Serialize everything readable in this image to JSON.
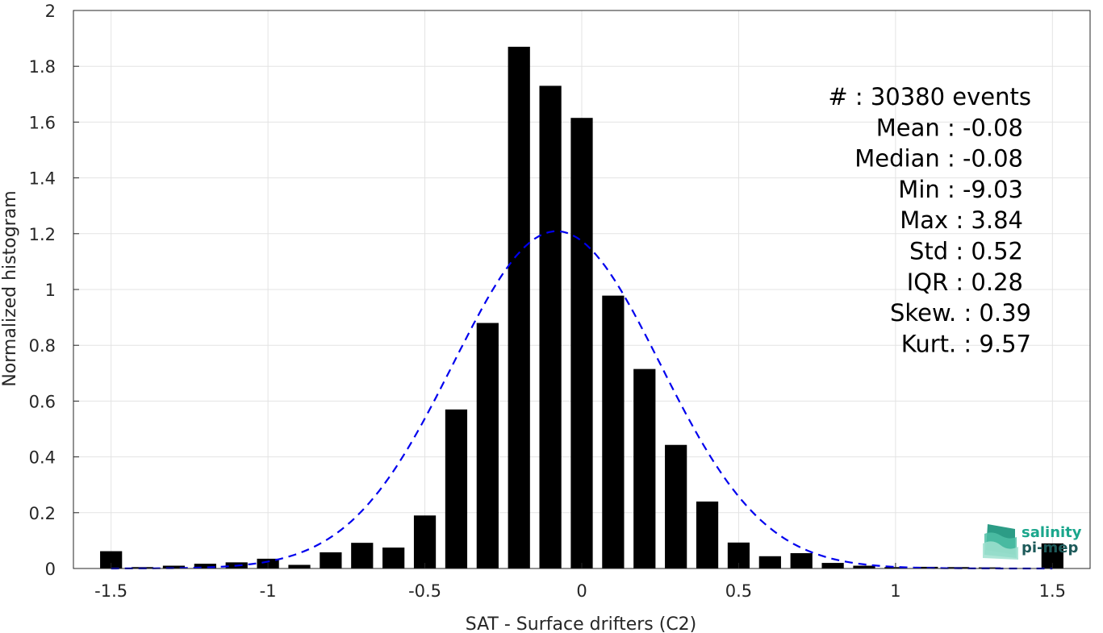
{
  "chart_data": {
    "type": "bar",
    "xlabel": "SAT - Surface drifters (C2)",
    "ylabel": "Normalized histogram",
    "xlim": [
      -1.62,
      1.62
    ],
    "ylim": [
      0,
      2
    ],
    "xticks": [
      -1.5,
      -1,
      -0.5,
      0,
      0.5,
      1,
      1.5
    ],
    "xtick_labels": [
      "-1.5",
      "-1",
      "-0.5",
      "0",
      "0.5",
      "1",
      "1.5"
    ],
    "yticks": [
      0,
      0.2,
      0.4,
      0.6,
      0.8,
      1,
      1.2,
      1.4,
      1.6,
      1.8,
      2
    ],
    "ytick_labels": [
      "0",
      "0.2",
      "0.4",
      "0.6",
      "0.8",
      "1",
      "1.2",
      "1.4",
      "1.6",
      "1.8",
      "2"
    ],
    "grid": true,
    "bar_width": 0.07,
    "bar_color": "#000000",
    "bins": [
      {
        "x": -1.5,
        "y": 0.062
      },
      {
        "x": -1.4,
        "y": 0.005
      },
      {
        "x": -1.3,
        "y": 0.01
      },
      {
        "x": -1.2,
        "y": 0.017
      },
      {
        "x": -1.1,
        "y": 0.022
      },
      {
        "x": -1.0,
        "y": 0.035
      },
      {
        "x": -0.9,
        "y": 0.013
      },
      {
        "x": -0.8,
        "y": 0.058
      },
      {
        "x": -0.7,
        "y": 0.092
      },
      {
        "x": -0.6,
        "y": 0.075
      },
      {
        "x": -0.5,
        "y": 0.19
      },
      {
        "x": -0.4,
        "y": 0.57
      },
      {
        "x": -0.3,
        "y": 0.88
      },
      {
        "x": -0.2,
        "y": 1.87
      },
      {
        "x": -0.1,
        "y": 1.73
      },
      {
        "x": 0.0,
        "y": 1.615
      },
      {
        "x": 0.1,
        "y": 0.978
      },
      {
        "x": 0.2,
        "y": 0.715
      },
      {
        "x": 0.3,
        "y": 0.443
      },
      {
        "x": 0.4,
        "y": 0.24
      },
      {
        "x": 0.5,
        "y": 0.093
      },
      {
        "x": 0.6,
        "y": 0.044
      },
      {
        "x": 0.7,
        "y": 0.055
      },
      {
        "x": 0.8,
        "y": 0.02
      },
      {
        "x": 0.9,
        "y": 0.01
      },
      {
        "x": 1.0,
        "y": 0.005
      },
      {
        "x": 1.1,
        "y": 0.006
      },
      {
        "x": 1.2,
        "y": 0.005
      },
      {
        "x": 1.3,
        "y": 0.004
      },
      {
        "x": 1.5,
        "y": 0.09
      }
    ],
    "fit_curve": {
      "style": "dashed",
      "color": "#0000ee",
      "mean": -0.08,
      "std": 0.33,
      "range": [
        -1.5,
        1.5
      ]
    },
    "stats": [
      "#  : 30380 events",
      "Mean : -0.08",
      "Median : -0.08",
      "Min : -9.03",
      "Max : 3.84",
      "Std : 0.52",
      "IQR : 0.28",
      "Skew. : 0.39",
      "Kurt. : 9.57"
    ]
  },
  "logo": {
    "line1": "salinity",
    "line2": "pi-mep",
    "color1": "#1aa68c",
    "color2": "#1d5a5a"
  }
}
